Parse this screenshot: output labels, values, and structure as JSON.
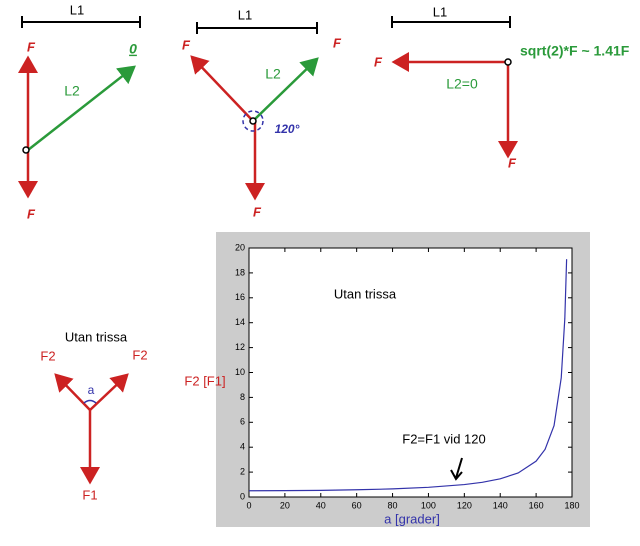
{
  "diagrams": [
    {
      "texts": [
        "L1",
        "F",
        "F",
        "L2",
        "0"
      ]
    },
    {
      "texts": [
        "L1",
        "F",
        "F",
        "F",
        "L2",
        "120°"
      ]
    },
    {
      "texts": [
        "L1",
        "F",
        "F",
        "L2=0",
        "sqrt(2)*F ~ 1.41F"
      ]
    },
    {
      "texts": [
        "Utan trissa",
        "F2",
        "F2",
        "a",
        "F1"
      ]
    }
  ],
  "chart_data": {
    "type": "line",
    "xlabel": "a [grader]",
    "ylabel": "F2 [F1]",
    "annotations": [
      "Utan trissa",
      "F2=F1 vid 120"
    ],
    "x": [
      0,
      20,
      40,
      60,
      80,
      100,
      120,
      130,
      140,
      150,
      160,
      165,
      170,
      174,
      176,
      177
    ],
    "series": [
      {
        "name": "F2",
        "color": "#3333aa",
        "values": [
          0.5,
          0.51,
          0.53,
          0.58,
          0.65,
          0.78,
          1.0,
          1.18,
          1.46,
          1.93,
          2.88,
          3.83,
          5.74,
          9.57,
          14.34,
          19.1
        ]
      }
    ],
    "xlim": [
      0,
      180
    ],
    "xticks": [
      0,
      20,
      40,
      60,
      80,
      100,
      120,
      140,
      160,
      180
    ],
    "ylim": [
      0,
      20
    ],
    "yticks": [
      0,
      2,
      4,
      6,
      8,
      10,
      12,
      14,
      16,
      18,
      20
    ]
  }
}
